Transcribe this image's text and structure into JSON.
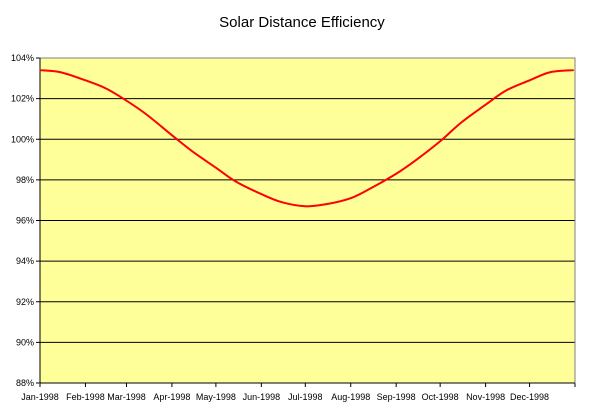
{
  "chart_data": {
    "type": "line",
    "title": "Solar Distance Efficiency",
    "xlabel": "",
    "ylabel": "",
    "x_ticks": [
      "Jan-1998",
      "Feb-1998",
      "Mar-1998",
      "Apr-1998",
      "May-1998",
      "Jun-1998",
      "Jul-1998",
      "Aug-1998",
      "Sep-1998",
      "Oct-1998",
      "Nov-1998",
      "Dec-1998"
    ],
    "y_ticks": [
      "88%",
      "90%",
      "92%",
      "94%",
      "96%",
      "98%",
      "100%",
      "102%",
      "104%"
    ],
    "ylim": [
      88,
      104
    ],
    "grid": true,
    "legend": "none",
    "plot_background": "#FFFF99",
    "grid_color": "#000000",
    "series": [
      {
        "color": "#FF0000",
        "x": [
          "1998-01-01",
          "1998-01-15",
          "1998-02-01",
          "1998-02-15",
          "1998-03-01",
          "1998-03-15",
          "1998-04-01",
          "1998-04-15",
          "1998-05-01",
          "1998-05-15",
          "1998-06-01",
          "1998-06-15",
          "1998-07-01",
          "1998-07-15",
          "1998-08-01",
          "1998-08-15",
          "1998-09-01",
          "1998-09-15",
          "1998-10-01",
          "1998-10-15",
          "1998-11-01",
          "1998-11-15",
          "1998-12-01",
          "1998-12-15",
          "1998-12-31"
        ],
        "values": [
          103.4,
          103.3,
          102.9,
          102.5,
          101.9,
          101.2,
          100.2,
          99.4,
          98.6,
          97.9,
          97.3,
          96.9,
          96.7,
          96.8,
          97.1,
          97.6,
          98.3,
          99.0,
          99.9,
          100.8,
          101.7,
          102.4,
          102.9,
          103.3,
          103.4
        ]
      }
    ]
  }
}
